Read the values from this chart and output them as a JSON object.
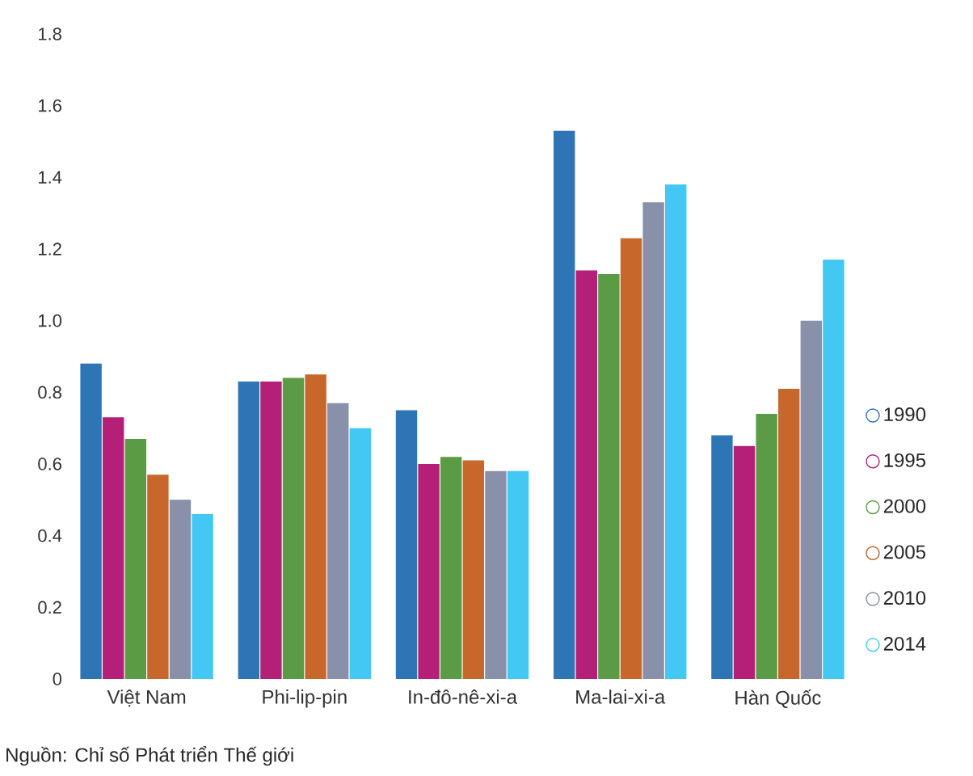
{
  "chart_data": {
    "type": "bar",
    "categories": [
      "Việt Nam",
      "Phi-lip-pin",
      "In-đô-nê-xi-a",
      "Ma-lai-xi-a",
      "Hàn Quốc"
    ],
    "series": [
      {
        "name": "1990",
        "color": "#2e75b6",
        "values": [
          0.88,
          0.83,
          0.75,
          1.53,
          0.68
        ]
      },
      {
        "name": "1995",
        "color": "#b41f78",
        "values": [
          0.73,
          0.83,
          0.6,
          1.14,
          0.65
        ]
      },
      {
        "name": "2000",
        "color": "#5b9b45",
        "values": [
          0.67,
          0.84,
          0.62,
          1.13,
          0.74
        ]
      },
      {
        "name": "2005",
        "color": "#c8672b",
        "values": [
          0.57,
          0.85,
          0.61,
          1.23,
          0.81
        ]
      },
      {
        "name": "2010",
        "color": "#8890aa",
        "values": [
          0.5,
          0.77,
          0.58,
          1.33,
          1.0
        ]
      },
      {
        "name": "2014",
        "color": "#42c8f2",
        "values": [
          0.46,
          0.7,
          0.58,
          1.38,
          1.17
        ]
      }
    ],
    "ylim": [
      0,
      1.8
    ],
    "yticks": [
      0,
      0.2,
      0.4,
      0.6,
      0.8,
      {
        "value": 1,
        "label": "1.0"
      },
      1.2,
      1.4,
      1.6,
      1.8
    ],
    "legend": "right",
    "grid": false,
    "annotations": [
      "Nguồn: Chỉ số Phát triển Thế giới"
    ]
  }
}
